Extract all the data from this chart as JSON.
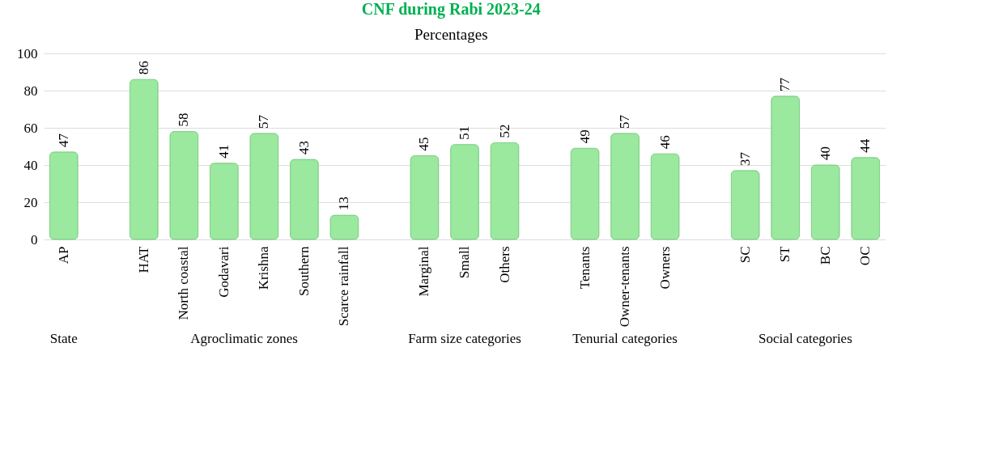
{
  "chart_data": {
    "type": "bar",
    "title": "CNF during Rabi 2023-24",
    "subtitle": "Percentages",
    "categories": [
      "AP",
      null,
      "HAT",
      "North coastal",
      "Godavari",
      "Krishna",
      "Southern",
      "Scarce rainfall",
      null,
      "Marginal",
      "Small",
      "Others",
      null,
      "Tenants",
      "Owner-tenants",
      "Owners",
      null,
      "SC",
      "ST",
      "BC",
      "OC"
    ],
    "values": [
      47,
      null,
      86,
      58,
      41,
      57,
      43,
      13,
      null,
      45,
      51,
      52,
      null,
      49,
      57,
      46,
      null,
      37,
      77,
      40,
      44
    ],
    "color": "#9be89f",
    "ylim": [
      0,
      100
    ],
    "yticks": [
      0,
      20,
      40,
      60,
      80,
      100
    ],
    "grid": "y",
    "data_labels": true,
    "annotations": [
      "State",
      "Agroclimatic zones",
      "Farm size categories",
      "Tenurial categories",
      "Social categories"
    ]
  }
}
